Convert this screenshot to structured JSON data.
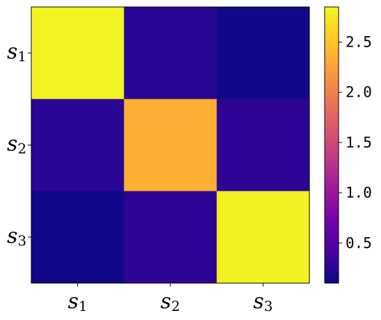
{
  "chart_data": {
    "type": "heatmap",
    "x_categories": [
      {
        "base": "s",
        "sub": "1"
      },
      {
        "base": "s",
        "sub": "2"
      },
      {
        "base": "s",
        "sub": "3"
      }
    ],
    "y_categories": [
      {
        "base": "s",
        "sub": "1"
      },
      {
        "base": "s",
        "sub": "2"
      },
      {
        "base": "s",
        "sub": "3"
      }
    ],
    "values": [
      [
        2.82,
        0.25,
        0.12
      ],
      [
        0.25,
        2.35,
        0.27
      ],
      [
        0.12,
        0.27,
        2.8
      ]
    ],
    "colorbar": {
      "vmin": 0.1,
      "vmax": 2.85,
      "ticks": [
        0.5,
        1.0,
        1.5,
        2.0,
        2.5
      ],
      "tick_labels": [
        "0.5",
        "1.0",
        "1.5",
        "2.0",
        "2.5"
      ]
    },
    "colormap": "plasma",
    "colormap_stops": [
      "#0d0887",
      "#46039f",
      "#7201a8",
      "#9c179e",
      "#bd3786",
      "#d8576b",
      "#ed7953",
      "#fb9f3a",
      "#fdca26",
      "#f0f921"
    ],
    "title": "",
    "xlabel": "",
    "ylabel": ""
  }
}
